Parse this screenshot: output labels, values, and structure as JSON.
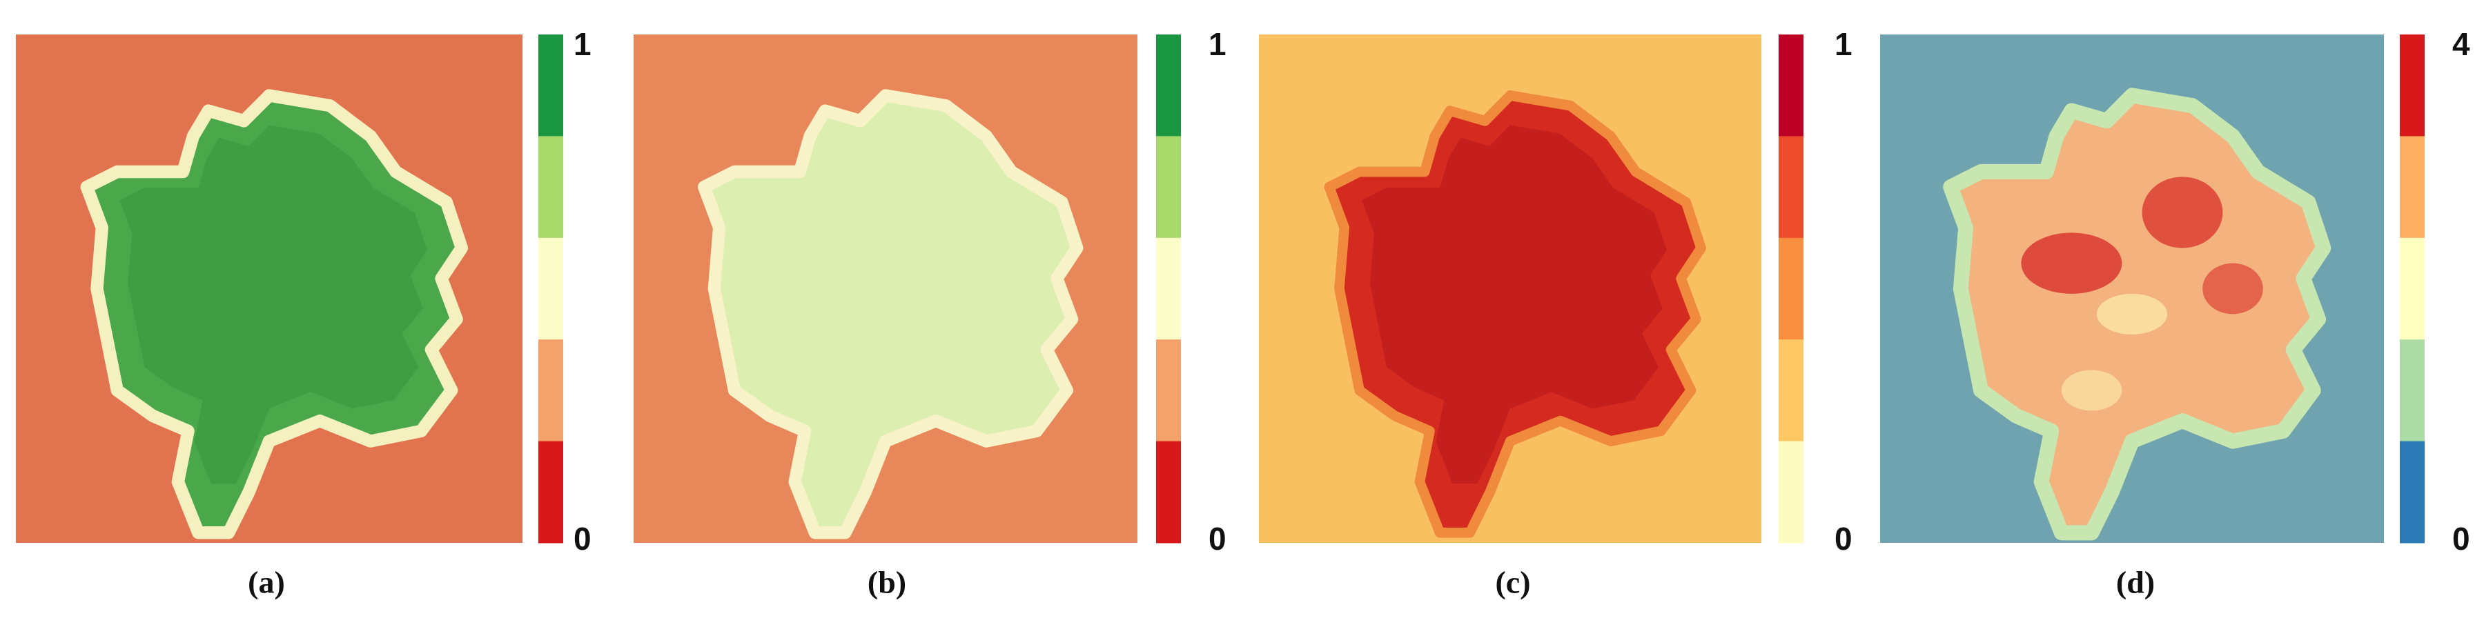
{
  "panels": [
    {
      "label": "(a)",
      "colorbar": {
        "top": "1",
        "bottom": "0",
        "colors": [
          "#1a9641",
          "#a6d96a",
          "#fdfdc9",
          "#f4a26a",
          "#d7191c"
        ]
      }
    },
    {
      "label": "(b)",
      "colorbar": {
        "top": "1",
        "bottom": "0",
        "colors": [
          "#1a9641",
          "#a6d96a",
          "#fdfdc9",
          "#f4a26a",
          "#d7191c"
        ]
      }
    },
    {
      "label": "(c)",
      "colorbar": {
        "top": "1",
        "bottom": "0",
        "colors": [
          "#bd0026",
          "#ec4b2c",
          "#f78e40",
          "#fec965",
          "#fdfcc0"
        ]
      }
    },
    {
      "label": "(d)",
      "colorbar": {
        "top": "4",
        "bottom": "0",
        "colors": [
          "#d7191c",
          "#fdae61",
          "#ffffbf",
          "#abdda4",
          "#2c7bb6"
        ]
      }
    }
  ]
}
